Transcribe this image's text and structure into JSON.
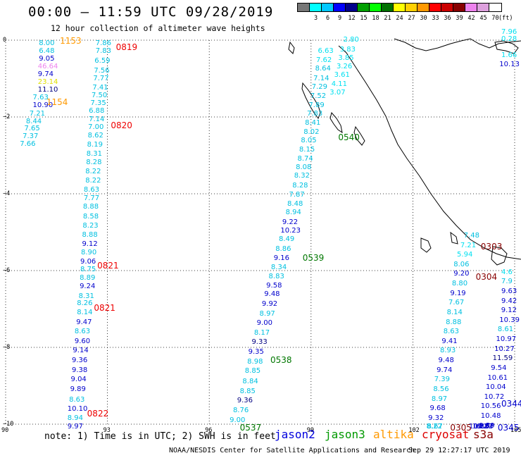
{
  "header": {
    "title": "00:00 — 11:59 UTC 09/28/2019",
    "subtitle": "12 hour collection of altimeter wave heights"
  },
  "colorbar": {
    "unit": "(ft)",
    "swatches": [
      {
        "label": "",
        "color": "#777777"
      },
      {
        "label": "3",
        "color": "#00ffff"
      },
      {
        "label": "6",
        "color": "#00c8ff"
      },
      {
        "label": "9",
        "color": "#0000ff"
      },
      {
        "label": "12",
        "color": "#00008b"
      },
      {
        "label": "15",
        "color": "#00a000"
      },
      {
        "label": "18",
        "color": "#00ff00"
      },
      {
        "label": "21",
        "color": "#007000"
      },
      {
        "label": "24",
        "color": "#ffff00"
      },
      {
        "label": "27",
        "color": "#ffd000"
      },
      {
        "label": "30",
        "color": "#ff9900"
      },
      {
        "label": "33",
        "color": "#ff0000"
      },
      {
        "label": "36",
        "color": "#cc0000"
      },
      {
        "label": "39",
        "color": "#880000"
      },
      {
        "label": "42",
        "color": "#ee82ee"
      },
      {
        "label": "45",
        "color": "#dda0dd"
      },
      {
        "label": "70",
        "color": "#ffffff"
      }
    ]
  },
  "axes": {
    "lat_ticks": [
      "0",
      "−2",
      "−4",
      "−6",
      "−8",
      "−10"
    ],
    "lon_ticks": [
      "90",
      "93",
      "96",
      "99",
      "102",
      "105"
    ]
  },
  "footer": {
    "note": "note: 1) Time is in UTC; 2) SWH is in feet",
    "credit": "NOAA/NESDIS Center for Satellite Applications and Research",
    "date": "Sep 29 12:27:17 UTC 2019",
    "satellites": {
      "jason2": "jason2",
      "jason3": "jason3",
      "altika": "altika",
      "cryosat": "cryosat",
      "s3a": "s3a"
    }
  },
  "tracks": {
    "colors": {
      "lightblue": "#00c0e0",
      "cyan": "#00e0f0",
      "blue": "#0000cc",
      "navy": "#000080",
      "orange": "#ff9900",
      "red": "#ee0000",
      "maroon": "#880000",
      "green": "#007700",
      "violet": "#ee82ee",
      "yellow": "#e0e000"
    },
    "heights": [
      {
        "lat": -0.1,
        "lon": 90.98,
        "v": "8.00",
        "c": "lightblue"
      },
      {
        "lat": -0.3,
        "lon": 90.98,
        "v": "6.48",
        "c": "lightblue"
      },
      {
        "lat": -0.5,
        "lon": 90.98,
        "v": "9.05",
        "c": "blue"
      },
      {
        "lat": -0.7,
        "lon": 90.95,
        "v": "46.64",
        "c": "violet"
      },
      {
        "lat": -0.9,
        "lon": 90.95,
        "v": "9.74",
        "c": "blue"
      },
      {
        "lat": -1.1,
        "lon": 90.95,
        "v": "23.14",
        "c": "yellow"
      },
      {
        "lat": -1.3,
        "lon": 90.95,
        "v": "11.10",
        "c": "navy"
      },
      {
        "lat": -1.5,
        "lon": 90.8,
        "v": "7.63",
        "c": "lightblue"
      },
      {
        "lat": -1.7,
        "lon": 90.8,
        "v": "10.90",
        "c": "blue"
      },
      {
        "lat": -1.92,
        "lon": 90.7,
        "v": "7.21",
        "c": "lightblue"
      },
      {
        "lat": -2.12,
        "lon": 90.6,
        "v": "8.44",
        "c": "lightblue"
      },
      {
        "lat": -2.32,
        "lon": 90.55,
        "v": "7.65",
        "c": "lightblue"
      },
      {
        "lat": -2.52,
        "lon": 90.5,
        "v": "7.37",
        "c": "lightblue"
      },
      {
        "lat": -2.72,
        "lon": 90.42,
        "v": "7.66",
        "c": "lightblue"
      },
      {
        "lat": -0.1,
        "lon": 92.65,
        "v": "7.86",
        "c": "lightblue"
      },
      {
        "lat": -0.3,
        "lon": 92.65,
        "v": "7.83",
        "c": "lightblue"
      },
      {
        "lat": -0.55,
        "lon": 92.62,
        "v": "6.59",
        "c": "lightblue"
      },
      {
        "lat": -0.8,
        "lon": 92.6,
        "v": "7.56",
        "c": "lightblue"
      },
      {
        "lat": -1.0,
        "lon": 92.58,
        "v": "7.77",
        "c": "lightblue"
      },
      {
        "lat": -1.25,
        "lon": 92.56,
        "v": "7.41",
        "c": "lightblue"
      },
      {
        "lat": -1.45,
        "lon": 92.53,
        "v": "7.50",
        "c": "lightblue"
      },
      {
        "lat": -1.65,
        "lon": 92.5,
        "v": "7.35",
        "c": "lightblue"
      },
      {
        "lat": -1.85,
        "lon": 92.45,
        "v": "6.88",
        "c": "lightblue"
      },
      {
        "lat": -2.08,
        "lon": 92.45,
        "v": "7.14",
        "c": "lightblue"
      },
      {
        "lat": -2.28,
        "lon": 92.43,
        "v": "7.00",
        "c": "lightblue"
      },
      {
        "lat": -2.5,
        "lon": 92.42,
        "v": "8.62",
        "c": "lightblue"
      },
      {
        "lat": -2.73,
        "lon": 92.4,
        "v": "8.19",
        "c": "lightblue"
      },
      {
        "lat": -2.97,
        "lon": 92.38,
        "v": "8.31",
        "c": "lightblue"
      },
      {
        "lat": -3.2,
        "lon": 92.37,
        "v": "8.28",
        "c": "lightblue"
      },
      {
        "lat": -3.43,
        "lon": 92.35,
        "v": "8.22",
        "c": "lightblue"
      },
      {
        "lat": -3.67,
        "lon": 92.35,
        "v": "8.22",
        "c": "lightblue"
      },
      {
        "lat": -3.9,
        "lon": 92.3,
        "v": "8.63",
        "c": "lightblue"
      },
      {
        "lat": -4.12,
        "lon": 92.3,
        "v": "7.77",
        "c": "lightblue"
      },
      {
        "lat": -4.35,
        "lon": 92.28,
        "v": "8.88",
        "c": "lightblue"
      },
      {
        "lat": -4.6,
        "lon": 92.28,
        "v": "8.58",
        "c": "lightblue"
      },
      {
        "lat": -4.85,
        "lon": 92.27,
        "v": "8.23",
        "c": "lightblue"
      },
      {
        "lat": -5.08,
        "lon": 92.25,
        "v": "8.88",
        "c": "lightblue"
      },
      {
        "lat": -5.32,
        "lon": 92.25,
        "v": "9.12",
        "c": "blue"
      },
      {
        "lat": -5.55,
        "lon": 92.22,
        "v": "8.90",
        "c": "lightblue"
      },
      {
        "lat": -5.78,
        "lon": 92.2,
        "v": "9.06",
        "c": "blue"
      },
      {
        "lat": -5.98,
        "lon": 92.2,
        "v": "8.75",
        "c": "lightblue"
      },
      {
        "lat": -6.2,
        "lon": 92.18,
        "v": "8.89",
        "c": "lightblue"
      },
      {
        "lat": -6.42,
        "lon": 92.18,
        "v": "9.24",
        "c": "blue"
      },
      {
        "lat": -6.68,
        "lon": 92.15,
        "v": "8.31",
        "c": "lightblue"
      },
      {
        "lat": -6.87,
        "lon": 92.1,
        "v": "8.26",
        "c": "lightblue"
      },
      {
        "lat": -7.1,
        "lon": 92.1,
        "v": "8.14",
        "c": "lightblue"
      },
      {
        "lat": -7.35,
        "lon": 92.08,
        "v": "9.47",
        "c": "blue"
      },
      {
        "lat": -7.6,
        "lon": 92.03,
        "v": "8.63",
        "c": "lightblue"
      },
      {
        "lat": -7.85,
        "lon": 92.03,
        "v": "9.60",
        "c": "blue"
      },
      {
        "lat": -8.1,
        "lon": 91.98,
        "v": "9.14",
        "c": "blue"
      },
      {
        "lat": -8.35,
        "lon": 91.95,
        "v": "9.36",
        "c": "blue"
      },
      {
        "lat": -8.6,
        "lon": 91.95,
        "v": "9.38",
        "c": "blue"
      },
      {
        "lat": -8.85,
        "lon": 91.92,
        "v": "9.04",
        "c": "blue"
      },
      {
        "lat": -9.1,
        "lon": 91.9,
        "v": "9.89",
        "c": "blue"
      },
      {
        "lat": -9.37,
        "lon": 91.87,
        "v": "8.63",
        "c": "lightblue"
      },
      {
        "lat": -9.62,
        "lon": 91.82,
        "v": "10.10",
        "c": "blue"
      },
      {
        "lat": -9.85,
        "lon": 91.82,
        "v": "8.94",
        "c": "lightblue"
      },
      {
        "lat": -10.1,
        "lon": 91.82,
        "v": "9.97",
        "c": "blue"
      },
      {
        "lat": -9.9,
        "lon": 96.6,
        "v": "9.00",
        "c": "lightblue"
      },
      {
        "lat": -9.65,
        "lon": 96.7,
        "v": "8.76",
        "c": "lightblue"
      },
      {
        "lat": -9.4,
        "lon": 96.82,
        "v": "9.36",
        "c": "navy"
      },
      {
        "lat": -9.15,
        "lon": 96.9,
        "v": "8.85",
        "c": "lightblue"
      },
      {
        "lat": -8.9,
        "lon": 96.98,
        "v": "8.84",
        "c": "lightblue"
      },
      {
        "lat": -8.63,
        "lon": 97.05,
        "v": "8.85",
        "c": "lightblue"
      },
      {
        "lat": -8.38,
        "lon": 97.12,
        "v": "8.98",
        "c": "lightblue"
      },
      {
        "lat": -8.13,
        "lon": 97.15,
        "v": "9.35",
        "c": "blue"
      },
      {
        "lat": -7.88,
        "lon": 97.25,
        "v": "9.33",
        "c": "navy"
      },
      {
        "lat": -7.63,
        "lon": 97.32,
        "v": "8.17",
        "c": "lightblue"
      },
      {
        "lat": -7.38,
        "lon": 97.4,
        "v": "9.00",
        "c": "blue"
      },
      {
        "lat": -7.13,
        "lon": 97.48,
        "v": "8.97",
        "c": "lightblue"
      },
      {
        "lat": -6.88,
        "lon": 97.55,
        "v": "9.92",
        "c": "blue"
      },
      {
        "lat": -6.63,
        "lon": 97.62,
        "v": "9.48",
        "c": "blue"
      },
      {
        "lat": -6.4,
        "lon": 97.68,
        "v": "9.58",
        "c": "blue"
      },
      {
        "lat": -6.17,
        "lon": 97.75,
        "v": "8.83",
        "c": "lightblue"
      },
      {
        "lat": -5.93,
        "lon": 97.82,
        "v": "8.34",
        "c": "lightblue"
      },
      {
        "lat": -5.68,
        "lon": 97.9,
        "v": "9.16",
        "c": "blue"
      },
      {
        "lat": -5.45,
        "lon": 97.95,
        "v": "8.86",
        "c": "lightblue"
      },
      {
        "lat": -5.2,
        "lon": 98.05,
        "v": "8.49",
        "c": "lightblue"
      },
      {
        "lat": -4.97,
        "lon": 98.1,
        "v": "10.23",
        "c": "blue"
      },
      {
        "lat": -4.75,
        "lon": 98.15,
        "v": "9.22",
        "c": "blue"
      },
      {
        "lat": -4.5,
        "lon": 98.25,
        "v": "8.94",
        "c": "lightblue"
      },
      {
        "lat": -4.27,
        "lon": 98.3,
        "v": "8.48",
        "c": "lightblue"
      },
      {
        "lat": -4.03,
        "lon": 98.35,
        "v": "7.87",
        "c": "lightblue"
      },
      {
        "lat": -3.8,
        "lon": 98.45,
        "v": "8.28",
        "c": "lightblue"
      },
      {
        "lat": -3.55,
        "lon": 98.5,
        "v": "8.32",
        "c": "lightblue"
      },
      {
        "lat": -3.33,
        "lon": 98.55,
        "v": "8.08",
        "c": "lightblue"
      },
      {
        "lat": -3.1,
        "lon": 98.6,
        "v": "8.74",
        "c": "lightblue"
      },
      {
        "lat": -2.87,
        "lon": 98.65,
        "v": "8.15",
        "c": "lightblue"
      },
      {
        "lat": -2.63,
        "lon": 98.7,
        "v": "8.05",
        "c": "lightblue"
      },
      {
        "lat": -2.4,
        "lon": 98.78,
        "v": "8.02",
        "c": "lightblue"
      },
      {
        "lat": -2.17,
        "lon": 98.82,
        "v": "8.41",
        "c": "lightblue"
      },
      {
        "lat": -1.93,
        "lon": 98.88,
        "v": "7.83",
        "c": "lightblue"
      },
      {
        "lat": -1.7,
        "lon": 98.93,
        "v": "7.89",
        "c": "lightblue"
      },
      {
        "lat": -1.46,
        "lon": 98.98,
        "v": "7.52",
        "c": "lightblue"
      },
      {
        "lat": -1.23,
        "lon": 99.02,
        "v": "7.29",
        "c": "lightblue"
      },
      {
        "lat": -1.0,
        "lon": 99.07,
        "v": "7.14",
        "c": "lightblue"
      },
      {
        "lat": -0.76,
        "lon": 99.12,
        "v": "8.64",
        "c": "lightblue"
      },
      {
        "lat": -0.53,
        "lon": 99.15,
        "v": "7.62",
        "c": "cyan"
      },
      {
        "lat": -0.3,
        "lon": 99.2,
        "v": "6.63",
        "c": "cyan"
      },
      {
        "lat": -1.38,
        "lon": 99.55,
        "v": "3.07",
        "c": "cyan"
      },
      {
        "lat": -1.15,
        "lon": 99.6,
        "v": "4.11",
        "c": "cyan"
      },
      {
        "lat": -0.92,
        "lon": 99.68,
        "v": "3.61",
        "c": "cyan"
      },
      {
        "lat": -0.7,
        "lon": 99.75,
        "v": "3.26",
        "c": "cyan"
      },
      {
        "lat": -0.48,
        "lon": 99.8,
        "v": "3.85",
        "c": "cyan"
      },
      {
        "lat": -0.25,
        "lon": 99.85,
        "v": "3.83",
        "c": "cyan"
      },
      {
        "lat": 0.0,
        "lon": 99.95,
        "v": "2.80",
        "c": "cyan"
      },
      {
        "lat": 0.2,
        "lon": 104.7,
        "v": "7.96",
        "c": "cyan"
      },
      {
        "lat": 0.02,
        "lon": 104.7,
        "v": "0.28",
        "c": "cyan"
      },
      {
        "lat": -0.4,
        "lon": 104.65,
        "v": "1.66",
        "c": "cyan"
      },
      {
        "lat": -0.65,
        "lon": 104.55,
        "v": "10.13",
        "c": "blue"
      },
      {
        "lat": -5.1,
        "lon": 103.5,
        "v": "7.48",
        "c": "lightblue"
      },
      {
        "lat": -5.35,
        "lon": 103.4,
        "v": "7.21",
        "c": "cyan"
      },
      {
        "lat": -5.6,
        "lon": 103.3,
        "v": "5.94",
        "c": "cyan"
      },
      {
        "lat": -5.85,
        "lon": 103.2,
        "v": "8.06",
        "c": "lightblue"
      },
      {
        "lat": -6.1,
        "lon": 103.2,
        "v": "9.20",
        "c": "blue"
      },
      {
        "lat": -6.35,
        "lon": 103.15,
        "v": "8.80",
        "c": "lightblue"
      },
      {
        "lat": -6.6,
        "lon": 103.1,
        "v": "9.19",
        "c": "blue"
      },
      {
        "lat": -6.85,
        "lon": 103.05,
        "v": "7.67",
        "c": "lightblue"
      },
      {
        "lat": -7.1,
        "lon": 103.0,
        "v": "8.14",
        "c": "lightblue"
      },
      {
        "lat": -7.35,
        "lon": 102.97,
        "v": "8.88",
        "c": "lightblue"
      },
      {
        "lat": -7.6,
        "lon": 102.9,
        "v": "8.63",
        "c": "lightblue"
      },
      {
        "lat": -7.85,
        "lon": 102.85,
        "v": "9.41",
        "c": "blue"
      },
      {
        "lat": -8.1,
        "lon": 102.8,
        "v": "8.93",
        "c": "lightblue"
      },
      {
        "lat": -8.35,
        "lon": 102.75,
        "v": "9.48",
        "c": "blue"
      },
      {
        "lat": -8.6,
        "lon": 102.7,
        "v": "9.74",
        "c": "blue"
      },
      {
        "lat": -8.85,
        "lon": 102.63,
        "v": "7.39",
        "c": "lightblue"
      },
      {
        "lat": -9.1,
        "lon": 102.6,
        "v": "8.56",
        "c": "lightblue"
      },
      {
        "lat": -9.35,
        "lon": 102.55,
        "v": "8.97",
        "c": "lightblue"
      },
      {
        "lat": -9.6,
        "lon": 102.5,
        "v": "9.68",
        "c": "blue"
      },
      {
        "lat": -9.85,
        "lon": 102.45,
        "v": "9.32",
        "c": "blue"
      },
      {
        "lat": -10.1,
        "lon": 102.42,
        "v": "8.67",
        "c": "lightblue"
      },
      {
        "lat": -10.35,
        "lon": 102.4,
        "v": "8.22",
        "c": "lightblue"
      },
      {
        "lat": -6.05,
        "lon": 104.85,
        "v": "4.6",
        "c": "cyan"
      },
      {
        "lat": -6.3,
        "lon": 104.8,
        "v": "7.9",
        "c": "lightblue"
      },
      {
        "lat": -6.55,
        "lon": 104.72,
        "v": "9.63",
        "c": "blue"
      },
      {
        "lat": -6.8,
        "lon": 104.65,
        "v": "9.42",
        "c": "blue"
      },
      {
        "lat": -7.05,
        "lon": 104.6,
        "v": "9.12",
        "c": "blue"
      },
      {
        "lat": -7.3,
        "lon": 104.55,
        "v": "10.39",
        "c": "blue"
      },
      {
        "lat": -7.55,
        "lon": 104.5,
        "v": "8.61",
        "c": "lightblue"
      },
      {
        "lat": -7.8,
        "lon": 104.45,
        "v": "10.97",
        "c": "blue"
      },
      {
        "lat": -8.05,
        "lon": 104.4,
        "v": "10.27",
        "c": "blue"
      },
      {
        "lat": -8.3,
        "lon": 104.35,
        "v": "11.59",
        "c": "navy"
      },
      {
        "lat": -8.55,
        "lon": 104.3,
        "v": "9.54",
        "c": "blue"
      },
      {
        "lat": -8.8,
        "lon": 104.2,
        "v": "10.61",
        "c": "blue"
      },
      {
        "lat": -9.05,
        "lon": 104.15,
        "v": "10.04",
        "c": "blue"
      },
      {
        "lat": -9.3,
        "lon": 104.1,
        "v": "10.72",
        "c": "blue"
      },
      {
        "lat": -9.55,
        "lon": 104.0,
        "v": "10.56",
        "c": "blue"
      },
      {
        "lat": -9.8,
        "lon": 104.0,
        "v": "10.48",
        "c": "blue"
      },
      {
        "lat": -10.05,
        "lon": 103.95,
        "v": "9.59",
        "c": "blue"
      },
      {
        "lat": -10.3,
        "lon": 103.9,
        "v": "9.22",
        "c": "blue"
      },
      {
        "lat": -10.55,
        "lon": 103.8,
        "v": "10.57",
        "c": "blue"
      },
      {
        "lat": -10.8,
        "lon": 103.75,
        "v": "10.37",
        "c": "blue"
      },
      {
        "lat": -11.05,
        "lon": 103.65,
        "v": "10.88",
        "c": "blue"
      }
    ],
    "times": [
      {
        "lat": 0.0,
        "lon": 91.6,
        "v": "1153",
        "c": "orange"
      },
      {
        "lat": -1.6,
        "lon": 91.2,
        "v": "1154",
        "c": "orange"
      },
      {
        "lat": -0.17,
        "lon": 93.25,
        "v": "0819",
        "c": "red"
      },
      {
        "lat": -2.2,
        "lon": 93.1,
        "v": "0820",
        "c": "red"
      },
      {
        "lat": -5.85,
        "lon": 92.7,
        "v": "0821",
        "c": "red"
      },
      {
        "lat": -6.95,
        "lon": 92.6,
        "v": "0821",
        "c": "red"
      },
      {
        "lat": -9.7,
        "lon": 92.4,
        "v": "0822",
        "c": "red"
      },
      {
        "lat": -2.52,
        "lon": 99.8,
        "v": "0540",
        "c": "green"
      },
      {
        "lat": -5.65,
        "lon": 98.75,
        "v": "0539",
        "c": "green"
      },
      {
        "lat": -8.32,
        "lon": 97.8,
        "v": "0538",
        "c": "green"
      },
      {
        "lat": -10.18,
        "lon": 96.9,
        "v": "0537",
        "c": "green"
      },
      {
        "lat": -5.35,
        "lon": 104.0,
        "v": "0303",
        "c": "maroon"
      },
      {
        "lat": -6.15,
        "lon": 103.85,
        "v": "0304",
        "c": "maroon"
      },
      {
        "lat": -10.1,
        "lon": 103.1,
        "v": "0305",
        "c": "maroon"
      },
      {
        "lat": -9.45,
        "lon": 104.8,
        "v": "0344",
        "c": "blue"
      },
      {
        "lat": -10.8,
        "lon": 104.5,
        "v": "0345",
        "c": "blue"
      }
    ]
  }
}
